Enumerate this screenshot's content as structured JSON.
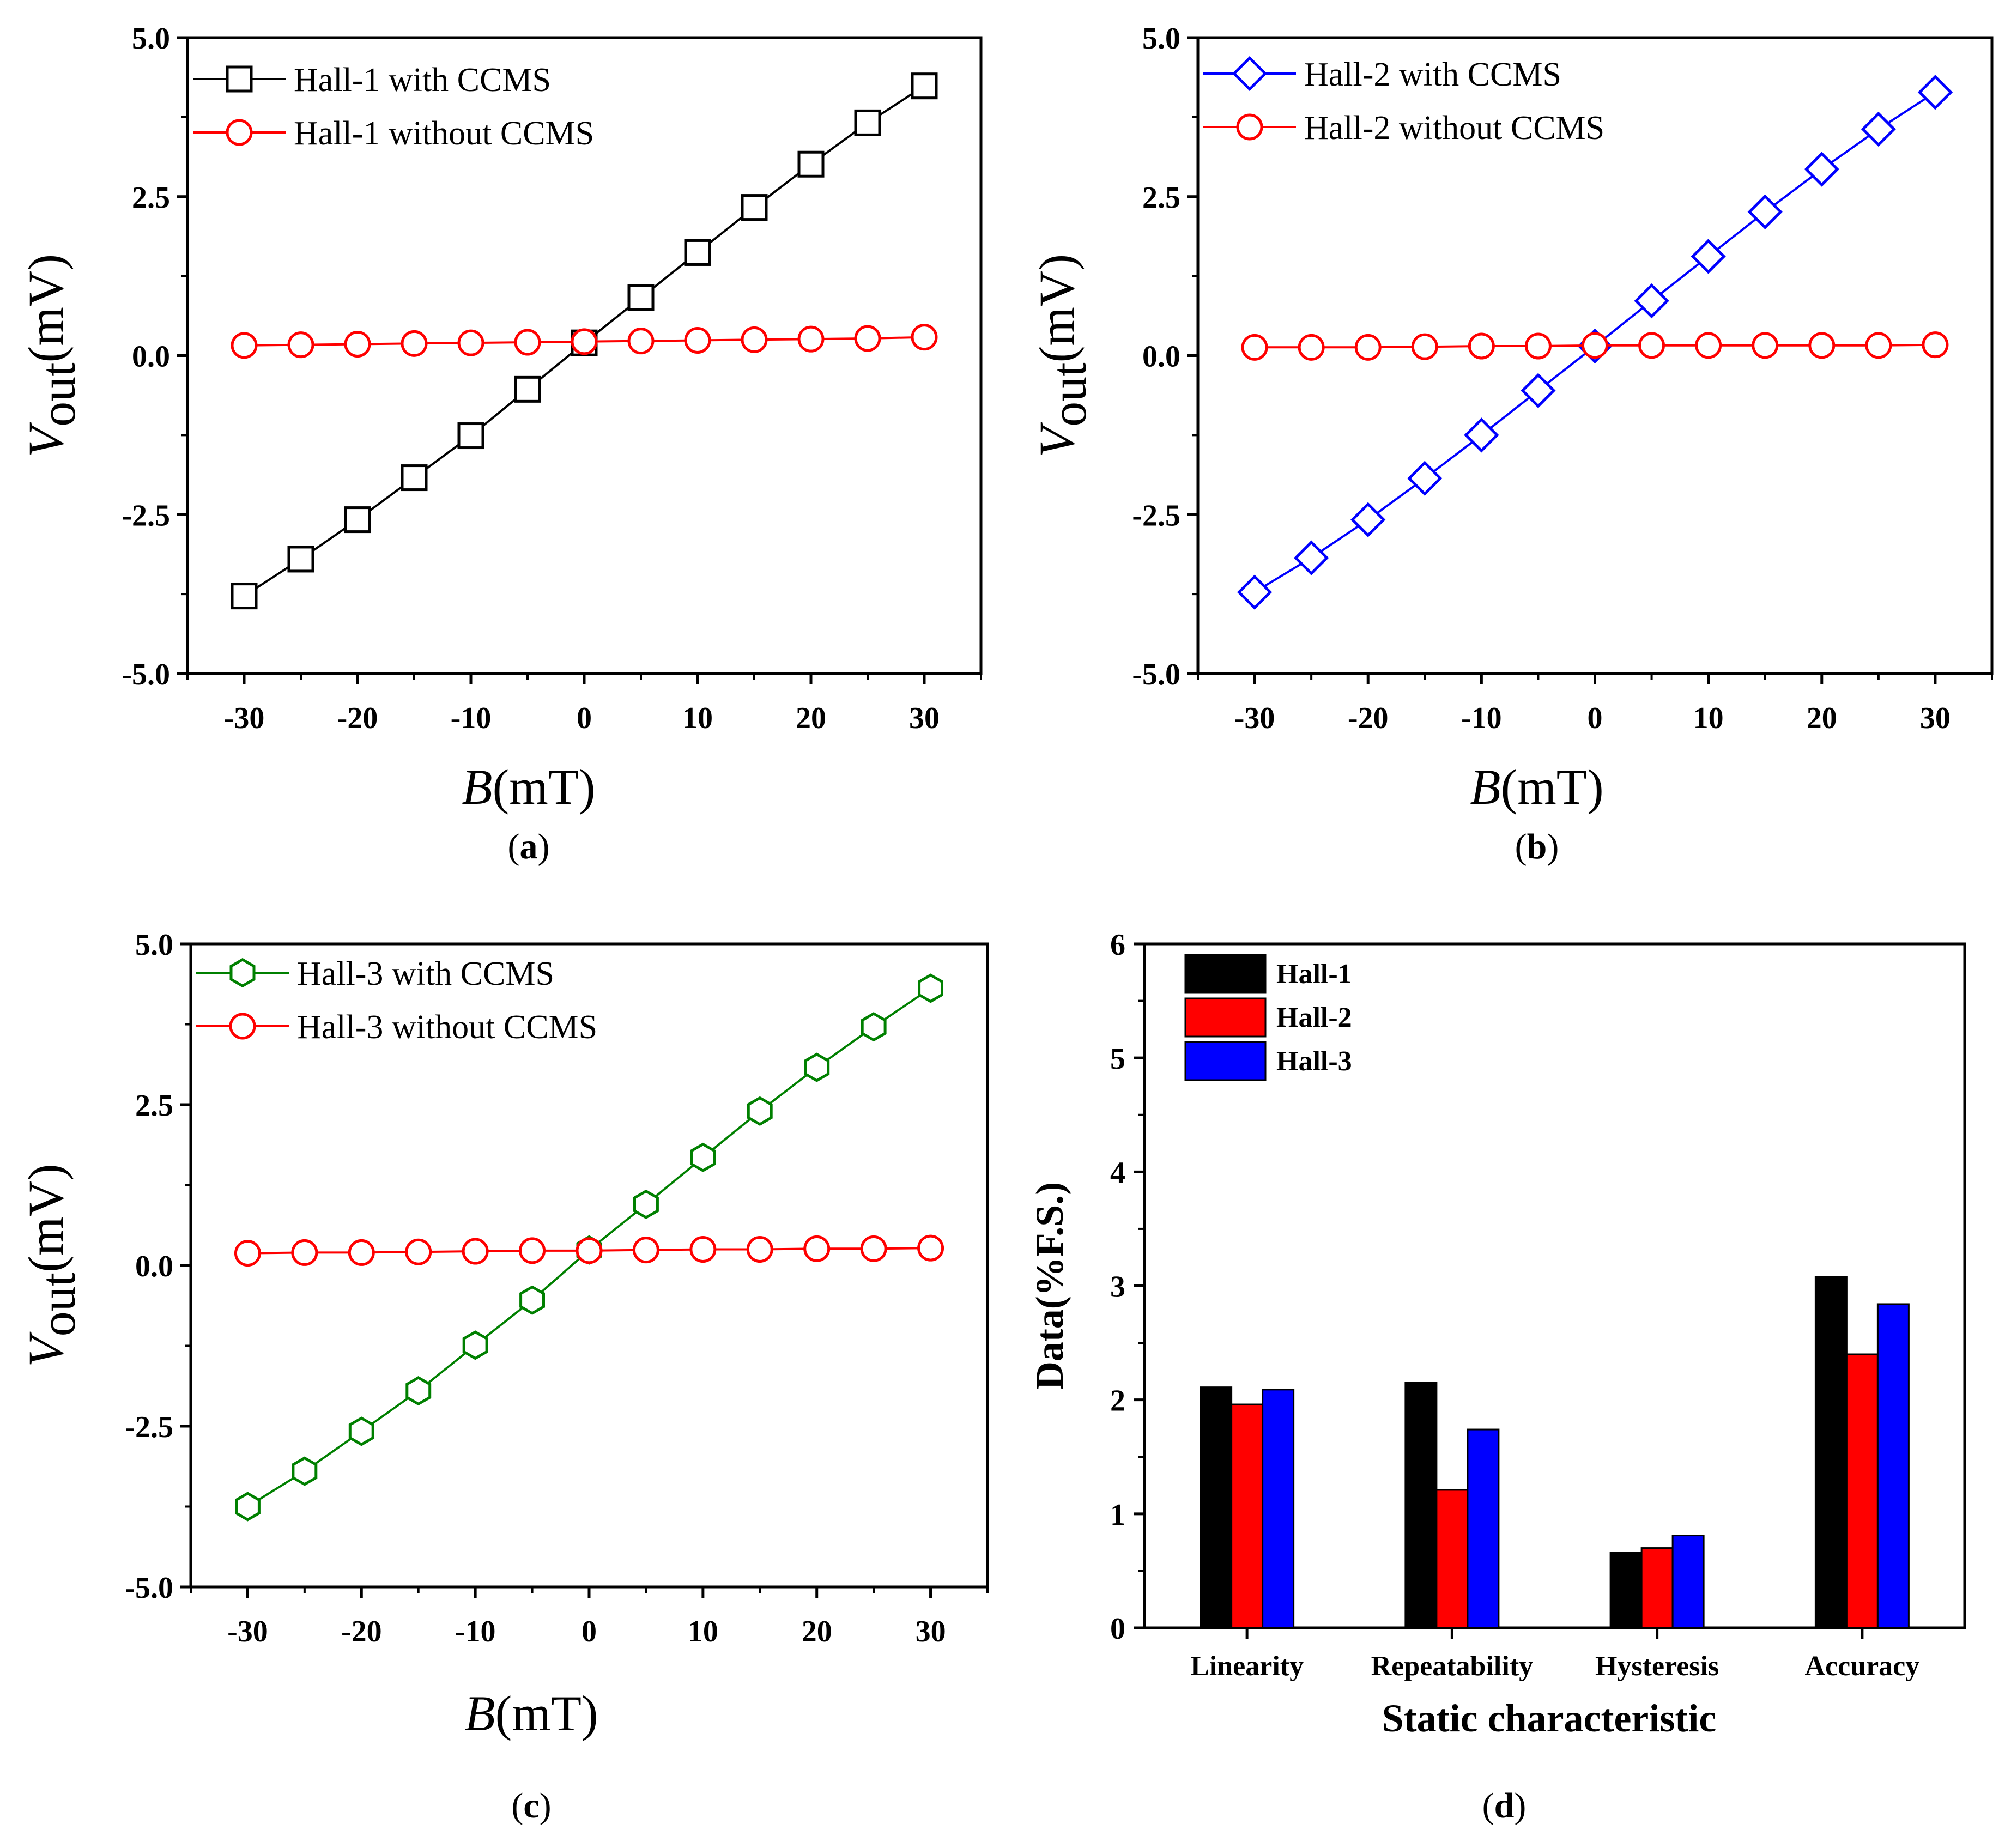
{
  "chart_data": [
    {
      "id": "a",
      "type": "line",
      "panel_label": "(a)",
      "label_letter": "a",
      "xlabel_sym": "B",
      "xlabel_unit": "(mT)",
      "ylabel_sym": "V",
      "ylabel_sub": "out",
      "ylabel_unit": "(mV)",
      "xlim": [
        -35,
        35
      ],
      "ylim": [
        -5.0,
        5.0
      ],
      "xticks": [
        -30,
        -20,
        -10,
        0,
        10,
        20,
        30
      ],
      "yticks": [
        5.0,
        2.5,
        0.0,
        -2.5,
        -5.0
      ],
      "ytick_labels": [
        "5.0",
        "2.5",
        "0.0",
        "-2.5",
        "-5.0"
      ],
      "x": [
        -30,
        -25,
        -20,
        -15,
        -10,
        -5,
        0,
        5,
        10,
        15,
        20,
        25,
        30
      ],
      "series": [
        {
          "name": "Hall-1 with CCMS",
          "color": "#000000",
          "marker": "square",
          "values": [
            -3.78,
            -3.2,
            -2.58,
            -1.92,
            -1.26,
            -0.53,
            0.2,
            0.91,
            1.62,
            2.33,
            3.01,
            3.66,
            4.24
          ]
        },
        {
          "name": "Hall-1 without CCMS",
          "color": "#ff0000",
          "marker": "circle",
          "values": [
            0.16,
            0.17,
            0.18,
            0.19,
            0.2,
            0.21,
            0.22,
            0.23,
            0.24,
            0.25,
            0.26,
            0.27,
            0.29
          ]
        }
      ]
    },
    {
      "id": "b",
      "type": "line",
      "panel_label": "(b)",
      "label_letter": "b",
      "xlabel_sym": "B",
      "xlabel_unit": "(mT)",
      "ylabel_sym": "V",
      "ylabel_sub": "out",
      "ylabel_unit": "(mV)",
      "xlim": [
        -35,
        35
      ],
      "ylim": [
        -5.0,
        5.0
      ],
      "xticks": [
        -30,
        -20,
        -10,
        0,
        10,
        20,
        30
      ],
      "yticks": [
        5.0,
        2.5,
        0.0,
        -2.5,
        -5.0
      ],
      "ytick_labels": [
        "5.0",
        "2.5",
        "0.0",
        "-2.5",
        "-5.0"
      ],
      "x": [
        -30,
        -25,
        -20,
        -15,
        -10,
        -5,
        0,
        5,
        10,
        15,
        20,
        25,
        30
      ],
      "series": [
        {
          "name": "Hall-2 with CCMS",
          "color": "#0000ff",
          "marker": "diamond",
          "values": [
            -3.72,
            -3.18,
            -2.58,
            -1.93,
            -1.25,
            -0.55,
            0.15,
            0.86,
            1.56,
            2.26,
            2.93,
            3.56,
            4.14
          ]
        },
        {
          "name": "Hall-2 without CCMS",
          "color": "#ff0000",
          "marker": "circle",
          "values": [
            0.13,
            0.13,
            0.13,
            0.14,
            0.15,
            0.15,
            0.16,
            0.16,
            0.16,
            0.16,
            0.16,
            0.16,
            0.17
          ]
        }
      ]
    },
    {
      "id": "c",
      "type": "line",
      "panel_label": "(c)",
      "label_letter": "c",
      "xlabel_sym": "B",
      "xlabel_unit": "(mT)",
      "ylabel_sym": "V",
      "ylabel_sub": "out",
      "ylabel_unit": "(mV)",
      "xlim": [
        -35,
        35
      ],
      "ylim": [
        -5.0,
        5.0
      ],
      "xticks": [
        -30,
        -20,
        -10,
        0,
        10,
        20,
        30
      ],
      "yticks": [
        5.0,
        2.5,
        0.0,
        -2.5,
        -5.0
      ],
      "ytick_labels": [
        "5.0",
        "2.5",
        "0.0",
        "-2.5",
        "-5.0"
      ],
      "x": [
        -30,
        -25,
        -20,
        -15,
        -10,
        -5,
        0,
        5,
        10,
        15,
        20,
        25,
        30
      ],
      "series": [
        {
          "name": "Hall-3 with CCMS",
          "color": "#008000",
          "marker": "hexagon",
          "values": [
            -3.75,
            -3.2,
            -2.58,
            -1.95,
            -1.24,
            -0.54,
            0.24,
            0.95,
            1.68,
            2.4,
            3.08,
            3.71,
            4.31
          ]
        },
        {
          "name": "Hall-3 without CCMS",
          "color": "#ff0000",
          "marker": "circle",
          "values": [
            0.19,
            0.2,
            0.2,
            0.21,
            0.22,
            0.23,
            0.23,
            0.24,
            0.25,
            0.25,
            0.26,
            0.26,
            0.27
          ]
        }
      ]
    },
    {
      "id": "d",
      "type": "bar",
      "panel_label": "(d)",
      "label_letter": "d",
      "xlabel": "Static characteristic",
      "ylabel": "Data(%F.S.)",
      "ylim": [
        0,
        6
      ],
      "yticks": [
        0,
        1,
        2,
        3,
        4,
        5,
        6
      ],
      "categories": [
        "Linearity",
        "Repeatability",
        "Hysteresis",
        "Accuracy"
      ],
      "series": [
        {
          "name": "Hall-1",
          "color": "#000000",
          "values": [
            2.11,
            2.15,
            0.66,
            3.08
          ]
        },
        {
          "name": "Hall-2",
          "color": "#ff0000",
          "values": [
            1.96,
            1.21,
            0.7,
            2.4
          ]
        },
        {
          "name": "Hall-3",
          "color": "#0000ff",
          "values": [
            2.09,
            1.74,
            0.81,
            2.84
          ]
        }
      ]
    }
  ]
}
